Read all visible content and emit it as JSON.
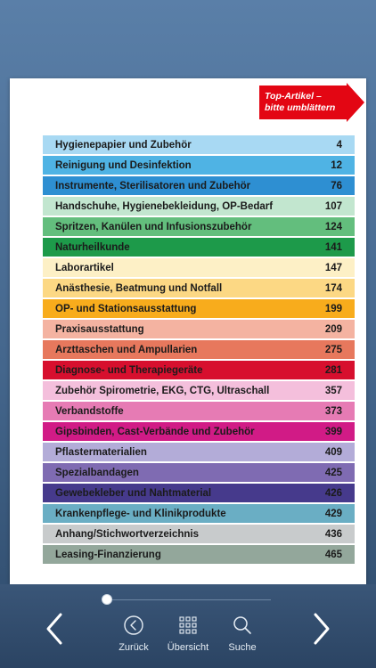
{
  "ribbon": {
    "line1": "Top-Artikel –",
    "line2": "bitte umblättern",
    "color": "#e30613"
  },
  "toc": [
    {
      "label": "Hygienepapier und Zubehör",
      "page": "4",
      "color": "#a8d9f3",
      "text_color": "#1b1b1b"
    },
    {
      "label": "Reinigung und Desinfektion",
      "page": "12",
      "color": "#4fb3e4",
      "text_color": "#1b1b1b"
    },
    {
      "label": "Instrumente, Sterilisatoren und Zubehör",
      "page": "76",
      "color": "#2e8fd2",
      "text_color": "#1b1b1b"
    },
    {
      "label": "Handschuhe, Hygienebekleidung, OP-Bedarf",
      "page": "107",
      "color": "#c2e6cf",
      "text_color": "#1b1b1b"
    },
    {
      "label": "Spritzen, Kanülen und Infusionszubehör",
      "page": "124",
      "color": "#63be7d",
      "text_color": "#1b1b1b"
    },
    {
      "label": "Naturheilkunde",
      "page": "141",
      "color": "#1d9a4a",
      "text_color": "#1b1b1b"
    },
    {
      "label": "Laborartikel",
      "page": "147",
      "color": "#fdf0c6",
      "text_color": "#1b1b1b"
    },
    {
      "label": "Anästhesie, Beatmung und Notfall",
      "page": "174",
      "color": "#fcd884",
      "text_color": "#1b1b1b"
    },
    {
      "label": "OP- und Stationsausstattung",
      "page": "199",
      "color": "#f8ac1c",
      "text_color": "#1b1b1b"
    },
    {
      "label": "Praxisausstattung",
      "page": "209",
      "color": "#f4b3a1",
      "text_color": "#1b1b1b"
    },
    {
      "label": "Arzttaschen und Ampullarien",
      "page": "275",
      "color": "#e7785d",
      "text_color": "#1b1b1b"
    },
    {
      "label": "Diagnose- und Therapiegeräte",
      "page": "281",
      "color": "#d70f2e",
      "text_color": "#1b1b1b"
    },
    {
      "label": "Zubehör Spirometrie, EKG, CTG, Ultraschall",
      "page": "357",
      "color": "#f4bfdc",
      "text_color": "#1b1b1b"
    },
    {
      "label": "Verbandstoffe",
      "page": "373",
      "color": "#e67bb4",
      "text_color": "#1b1b1b"
    },
    {
      "label": "Gipsbinden, Cast-Verbände und Zubehör",
      "page": "399",
      "color": "#d11b86",
      "text_color": "#1b1b1b"
    },
    {
      "label": "Pflastermaterialien",
      "page": "409",
      "color": "#b3acd8",
      "text_color": "#1b1b1b"
    },
    {
      "label": "Spezialbandagen",
      "page": "425",
      "color": "#7f6bb2",
      "text_color": "#1b1b1b"
    },
    {
      "label": "Gewebekleber und Nahtmaterial",
      "page": "426",
      "color": "#463a8c",
      "text_color": "#1b1b1b"
    },
    {
      "label": "Krankenpflege- und Klinikprodukte",
      "page": "429",
      "color": "#6aaec4",
      "text_color": "#1b1b1b"
    },
    {
      "label": "Anhang/Stichwortverzeichnis",
      "page": "436",
      "color": "#c8cbcc",
      "text_color": "#1b1b1b"
    },
    {
      "label": "Leasing-Finanzierung",
      "page": "465",
      "color": "#93a79b",
      "text_color": "#1b1b1b"
    }
  ],
  "toolbar": {
    "back_label": "Zurück",
    "overview_label": "Übersicht",
    "search_label": "Suche",
    "back_icon": "circle-chevron-left-icon",
    "overview_icon": "grid-icon",
    "search_icon": "magnifier-icon",
    "prev_icon": "chevron-left-icon",
    "next_icon": "chevron-right-icon"
  },
  "slider": {
    "position": 0.0
  }
}
